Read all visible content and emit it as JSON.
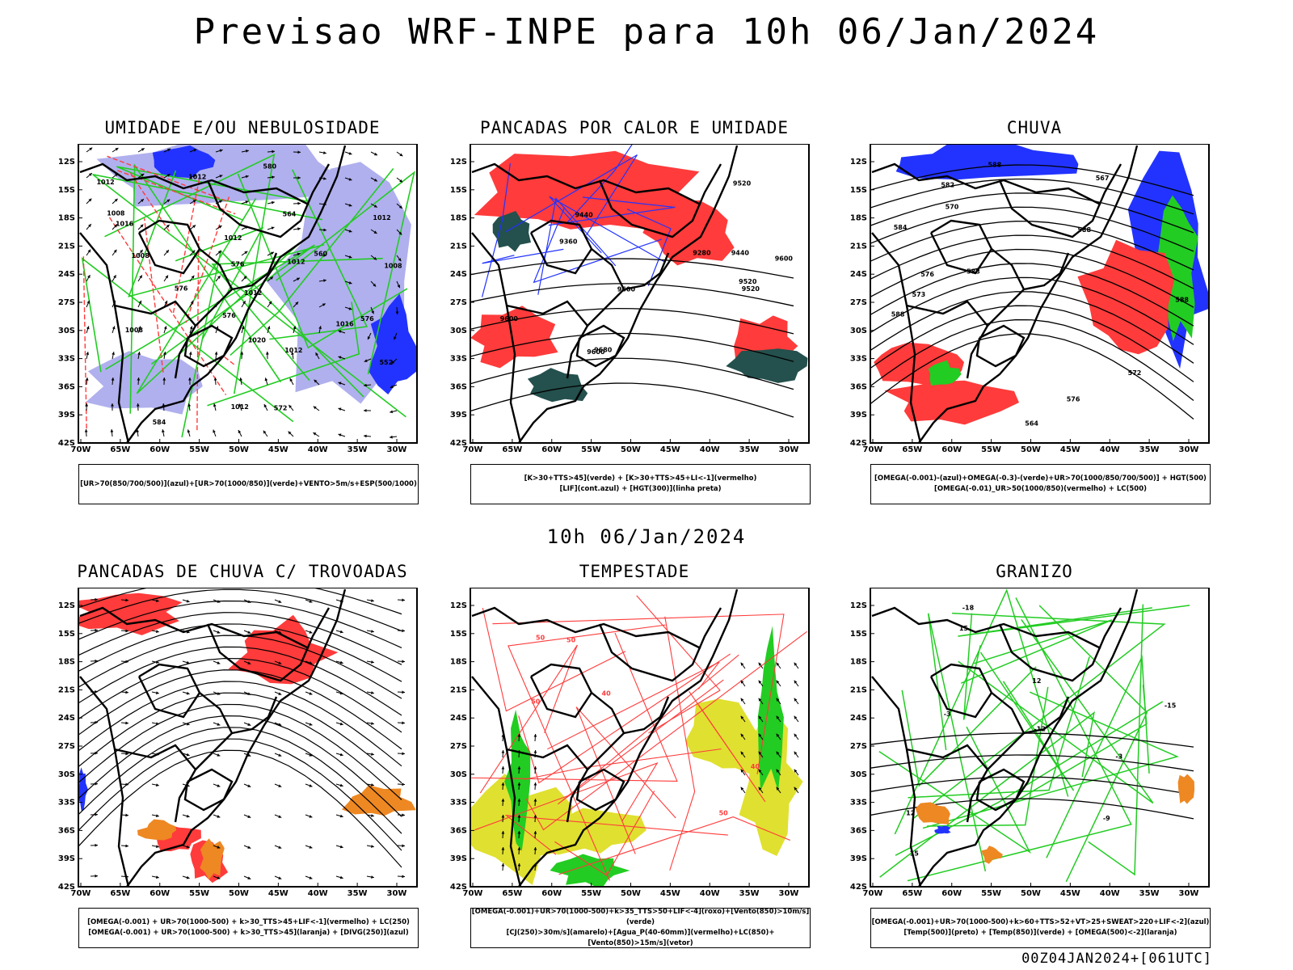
{
  "title": "Previsao WRF-INPE  para 10h 06/Jan/2024",
  "middle_label": "10h 06/Jan/2024",
  "footer": "00Z04JAN2024+[061UTC]",
  "axes": {
    "lat_ticks": [
      "12S",
      "15S",
      "18S",
      "21S",
      "24S",
      "27S",
      "30S",
      "33S",
      "36S",
      "39S",
      "42S"
    ],
    "lon_ticks": [
      "70W",
      "65W",
      "60W",
      "55W",
      "50W",
      "45W",
      "40W",
      "35W",
      "30W"
    ]
  },
  "colors": {
    "red": "#ff3b3b",
    "green": "#22cc22",
    "blue": "#2233ff",
    "dark_teal": "#24504d",
    "yellow": "#e0e030",
    "orange": "#ee8822",
    "lavender": "#b0b0ee"
  },
  "panels": [
    {
      "title": "UMIDADE E/OU NEBULOSIDADE",
      "legend": [
        "[UR>70(850/700/500)](azul)+[UR>70(1000/850)](verde)+VENTO>5m/s+ESP(500/1000)"
      ],
      "contour_labels": [
        "1012",
        "1012",
        "1008",
        "1008",
        "1012",
        "1012",
        "1012",
        "1012",
        "1012",
        "1016",
        "1020",
        "1016",
        "1008",
        "1012",
        "1008",
        "576",
        "576",
        "576",
        "572",
        "564",
        "552",
        "560",
        "576",
        "580",
        "584"
      ]
    },
    {
      "title": "PANCADAS POR CALOR E UMIDADE",
      "legend": [
        "[K>30+TTS>45](verde) + [K>30+TTS>45+LI<-1](vermelho)",
        "[LIF](cont.azul) + [HGT(300)](linha preta)"
      ],
      "contour_labels": [
        "9600",
        "9600",
        "9600",
        "9520",
        "9520",
        "9440",
        "9440",
        "9360",
        "9280",
        "9680",
        "9600",
        "9520"
      ]
    },
    {
      "title": "CHUVA",
      "legend": [
        "[OMEGA(-0.001)-(azul)+OMEGA(-0.3)-(verde)+UR>70(1000/850/700/500)] + HGT(500)",
        "[OMEGA(-0.01)_UR>50(1000/850)(vermelho) + LC(500)"
      ],
      "contour_labels": [
        "588",
        "588",
        "588",
        "588",
        "588",
        "576",
        "576",
        "572",
        "582",
        "584",
        "570",
        "573",
        "567",
        "564"
      ]
    },
    {
      "title": "PANCADAS DE CHUVA C/ TROVOADAS",
      "legend": [
        "[OMEGA(-0.001) + UR>70(1000-500) + k>30_TTS>45+LIF<-1](vermelho) + LC(250)",
        "[OMEGA(-0.001) + UR>70(1000-500) + k>30_TTS>45](laranja) + [DIVG(250)](azul)"
      ],
      "contour_labels": []
    },
    {
      "title": "TEMPESTADE",
      "legend": [
        "[OMEGA(-0.001)+UR>70(1000-500)+k>35_TTS>50+LIF<-4](roxo)+[Vento(850)>10m/s](verde)",
        "[CJ(250)>30m/s](amarelo)+[Agua_P(40-60mm)](vermelho)+LC(850)+[Vento(850)>15m/s](vetor)"
      ],
      "contour_labels": [
        "50",
        "50",
        "50",
        "40",
        "40",
        "50"
      ]
    },
    {
      "title": "GRANIZO",
      "legend": [
        "[OMEGA(-0.001)+UR>70(1000-500)+k>60+TTS>52+VT>25+SWEAT>220+LIF<-2](azul)",
        "[Temp(500)](preto) + [Temp(850)](verde) + [OMEGA(500)<-2](laranja)"
      ],
      "contour_labels": [
        "-3",
        "-3",
        "-9",
        "15",
        "15",
        "-12",
        "12",
        "-15",
        "-18",
        "12"
      ]
    }
  ]
}
